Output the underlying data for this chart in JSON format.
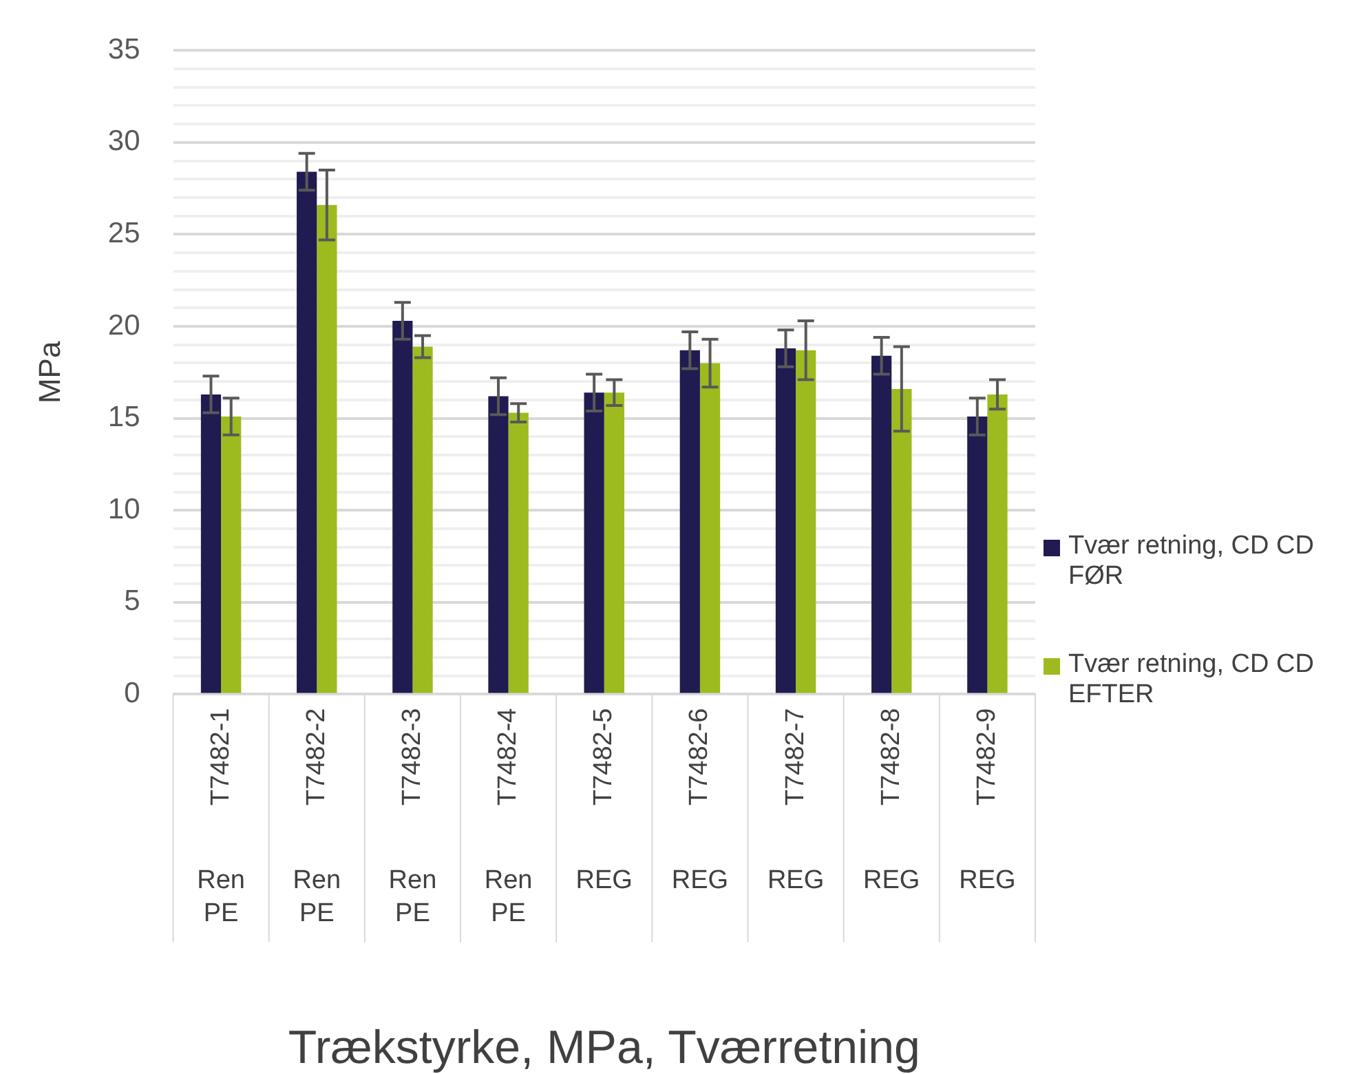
{
  "chart_data": {
    "type": "bar",
    "xlabel": "Trækstyrke, MPa, Tværretning",
    "ylabel": "MPa",
    "categories": [
      "T7482-1",
      "T7482-2",
      "T7482-3",
      "T7482-4",
      "T7482-5",
      "T7482-6",
      "T7482-7",
      "T7482-8",
      "T7482-9"
    ],
    "series": [
      {
        "name": "Tvær retning, CD CD FØR",
        "color": "#201b50",
        "values": [
          16.3,
          28.4,
          20.3,
          16.2,
          16.4,
          18.7,
          18.8,
          18.4,
          15.1
        ],
        "errors": [
          1,
          1,
          1,
          1,
          1,
          1,
          1,
          1,
          1
        ]
      },
      {
        "name": "Tvær retning, CD CD EFTER",
        "color": "#9dbb1f",
        "values": [
          15.1,
          26.6,
          18.9,
          15.3,
          16.4,
          18.0,
          18.7,
          16.6,
          16.3
        ],
        "errors": [
          1,
          1.9,
          0.6,
          0.5,
          0.7,
          1.3,
          1.6,
          2.3,
          0.8
        ]
      }
    ],
    "annotations": [
      "Ren PE",
      "Ren PE",
      "Ren PE",
      "Ren PE",
      "REG",
      "REG",
      "REG",
      "REG",
      "REG"
    ],
    "ylim": [
      0,
      35
    ],
    "yticks": [
      0,
      {
        "value": 1,
        "label": null
      },
      {
        "value": 2,
        "label": null
      },
      {
        "value": 3,
        "label": null
      },
      {
        "value": 4,
        "label": null
      },
      5,
      {
        "value": 6,
        "label": null
      },
      {
        "value": 7,
        "label": null
      },
      {
        "value": 8,
        "label": null
      },
      {
        "value": 9,
        "label": null
      },
      10,
      {
        "value": 11,
        "label": null
      },
      {
        "value": 12,
        "label": null
      },
      {
        "value": 13,
        "label": null
      },
      {
        "value": 14,
        "label": null
      },
      15,
      {
        "value": 16,
        "label": null
      },
      {
        "value": 17,
        "label": null
      },
      {
        "value": 18,
        "label": null
      },
      {
        "value": 19,
        "label": null
      },
      20,
      {
        "value": 21,
        "label": null
      },
      {
        "value": 22,
        "label": null
      },
      {
        "value": 23,
        "label": null
      },
      {
        "value": 24,
        "label": null
      },
      25,
      {
        "value": 26,
        "label": null
      },
      {
        "value": 27,
        "label": null
      },
      {
        "value": 28,
        "label": null
      },
      {
        "value": 29,
        "label": null
      },
      30,
      {
        "value": 31,
        "label": null
      },
      {
        "value": 32,
        "label": null
      },
      {
        "value": 33,
        "label": null
      },
      {
        "value": 34,
        "label": null
      },
      35
    ],
    "grid": "y",
    "legend": "right"
  }
}
